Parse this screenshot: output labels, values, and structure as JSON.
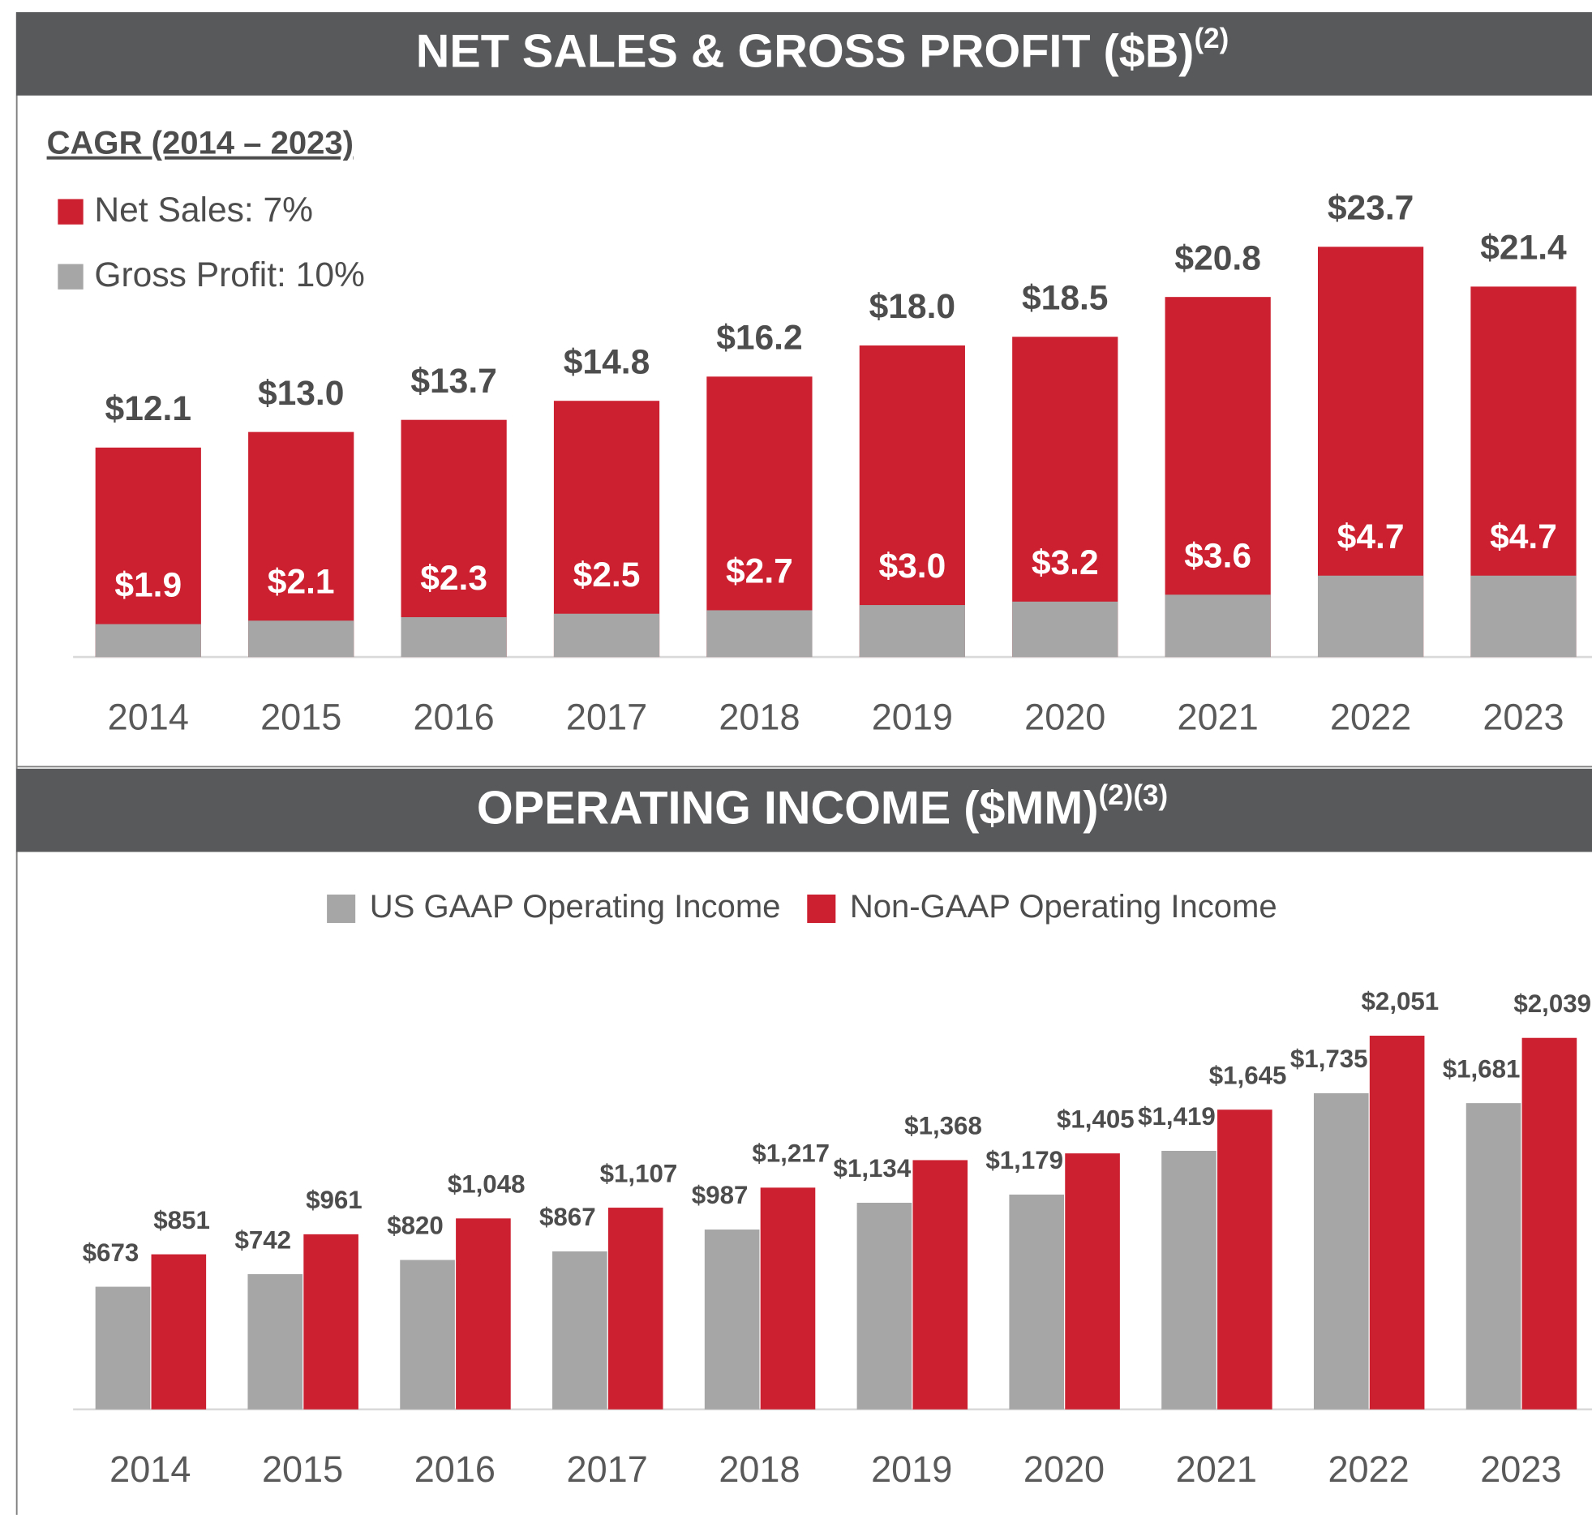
{
  "chart_data": [
    {
      "type": "bar",
      "layout": "overlap",
      "title": "NET SALES & GROSS PROFIT ($B)",
      "title_note": "(2)",
      "subtitle": "CAGR (2014 – 2023)",
      "categories": [
        "2014",
        "2015",
        "2016",
        "2017",
        "2018",
        "2019",
        "2020",
        "2021",
        "2022",
        "2023"
      ],
      "series": [
        {
          "name": "Net Sales: 7%",
          "color": "#cc1f2f",
          "values": [
            12.1,
            13.0,
            13.7,
            14.8,
            16.2,
            18.0,
            18.5,
            20.8,
            23.7,
            21.4
          ],
          "value_labels": [
            "$12.1",
            "$13.0",
            "$13.7",
            "$14.8",
            "$16.2",
            "$18.0",
            "$18.5",
            "$20.8",
            "$23.7",
            "$21.4"
          ]
        },
        {
          "name": "Gross Profit: 10%",
          "color": "#a6a6a6",
          "values": [
            1.9,
            2.1,
            2.3,
            2.5,
            2.7,
            3.0,
            3.2,
            3.6,
            4.7,
            4.7
          ],
          "value_labels": [
            "$1.9",
            "$2.1",
            "$2.3",
            "$2.5",
            "$2.7",
            "$3.0",
            "$3.2",
            "$3.6",
            "$4.7",
            "$4.7"
          ]
        }
      ]
    },
    {
      "type": "bar",
      "layout": "grouped",
      "title": "OPERATING INCOME ($MM)",
      "title_note": "(2)(3)",
      "categories": [
        "2014",
        "2015",
        "2016",
        "2017",
        "2018",
        "2019",
        "2020",
        "2021",
        "2022",
        "2023"
      ],
      "series": [
        {
          "name": "US GAAP Operating Income",
          "color": "#a6a6a6",
          "values": [
            673,
            742,
            820,
            867,
            987,
            1134,
            1179,
            1419,
            1735,
            1681
          ],
          "value_labels": [
            "$673",
            "$742",
            "$820",
            "$867",
            "$987",
            "$1,134",
            "$1,179",
            "$1,419",
            "$1,735",
            "$1,681"
          ]
        },
        {
          "name": "Non-GAAP Operating Income",
          "color": "#cc1f2f",
          "values": [
            851,
            961,
            1048,
            1107,
            1217,
            1368,
            1405,
            1645,
            2051,
            2039
          ],
          "value_labels": [
            "$851",
            "$961",
            "$1,048",
            "$1,107",
            "$1,217",
            "$1,368",
            "$1,405",
            "$1,645",
            "$2,051",
            "$2,039"
          ]
        }
      ]
    }
  ]
}
